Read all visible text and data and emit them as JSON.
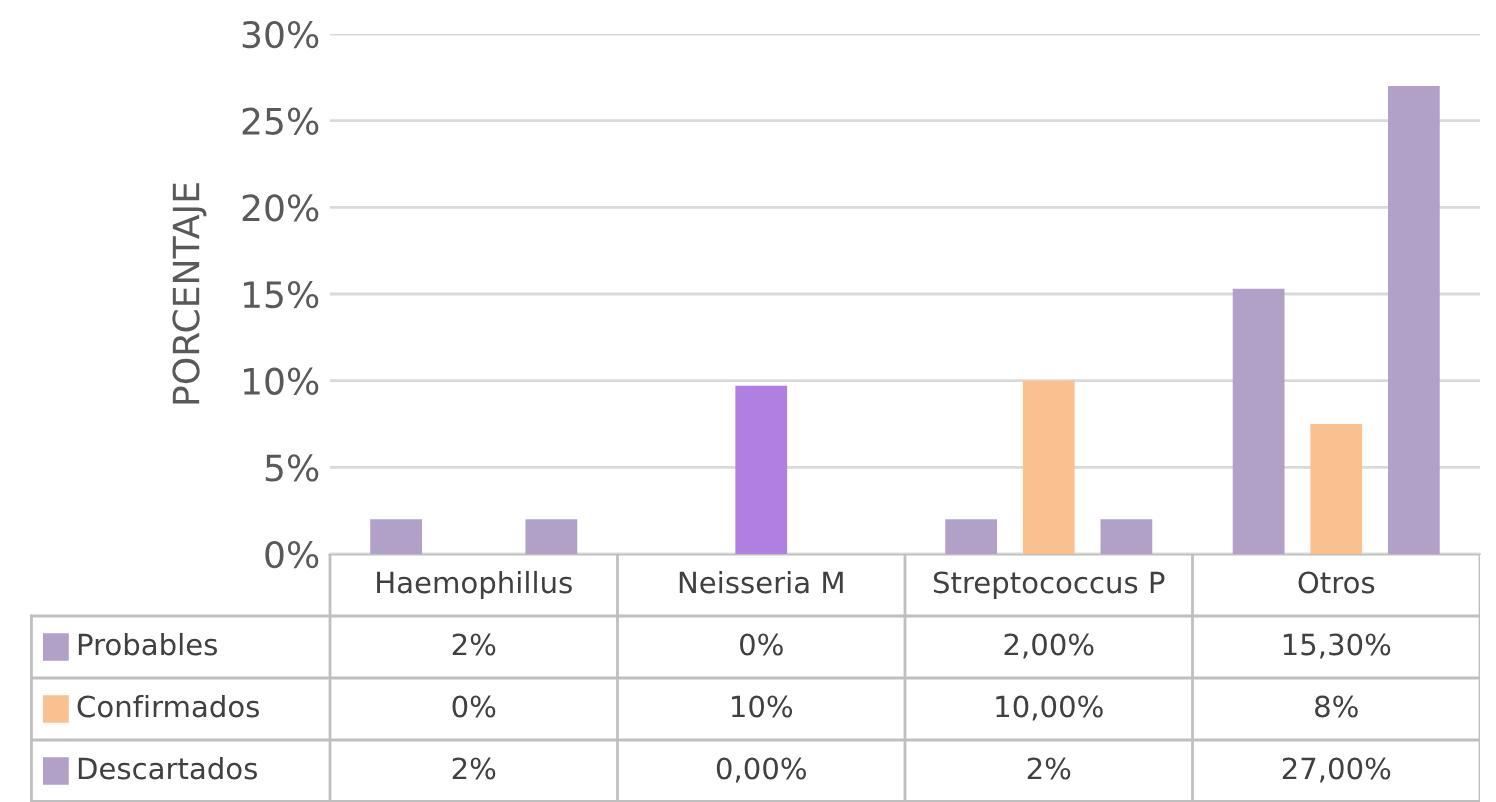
{
  "chart_data": {
    "type": "bar",
    "ylabel": "PORCENTAJE",
    "categories": [
      "Haemophillus",
      "Neisseria M",
      "Streptococcus P",
      "Otros"
    ],
    "series": [
      {
        "name": "Probables",
        "color": "#b1a0c7",
        "values": [
          2,
          0,
          2,
          15.3
        ],
        "value_labels": [
          "2%",
          "0%",
          "2,00%",
          "15,30%"
        ]
      },
      {
        "name": "Confirmados",
        "color": "#fac090",
        "colors": [
          "#fac090",
          "#b07fdf",
          "#fac090",
          "#fac090"
        ],
        "values": [
          0,
          9.7,
          10,
          7.5
        ],
        "value_labels": [
          "0%",
          "10%",
          "10,00%",
          "8%"
        ]
      },
      {
        "name": "Descartados",
        "color": "#b1a0c7",
        "values": [
          2,
          0,
          2,
          27
        ],
        "value_labels": [
          "2%",
          "0,00%",
          "2%",
          "27,00%"
        ]
      }
    ],
    "ylim": [
      0,
      30
    ],
    "yticks": [
      {
        "value": 0,
        "label": "0%"
      },
      {
        "value": 5,
        "label": "5%"
      },
      {
        "value": 10,
        "label": "10%"
      },
      {
        "value": 15,
        "label": "15%"
      },
      {
        "value": 20,
        "label": "20%"
      },
      {
        "value": 25,
        "label": "25%"
      },
      {
        "value": 30,
        "label": "30%"
      }
    ],
    "grid": "y",
    "legend": "bottom"
  }
}
